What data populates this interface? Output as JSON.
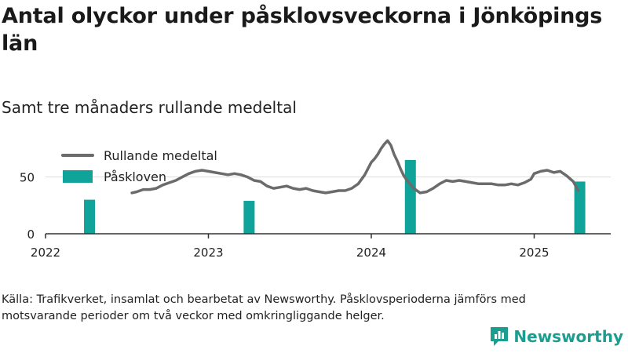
{
  "title": "Antal olyckor under påsklovsveckorna i Jönköpings län",
  "subtitle": "Samt tre månaders rullande medeltal",
  "source": "Källa: Trafikverket, insamlat och bearbetat av Newsworthy. Påsklovsperioderna jämförs med motsvarande perioder om två veckor med omkringliggande helger.",
  "brand": {
    "name": "Newsworthy",
    "color": "#1b9e8f",
    "icon": "newsworthy-logo-icon"
  },
  "colors": {
    "line": "#6b6b6b",
    "bar": "#0fa39a",
    "grid": "#dddddd",
    "axis": "#333333"
  },
  "chart_data": {
    "type": "bar+line",
    "title": "Antal olyckor under påsklovsveckorna i Jönköpings län",
    "subtitle": "Samt tre månaders rullande medeltal",
    "xlabel": "",
    "ylabel": "",
    "xlim": [
      2022.0,
      2025.47
    ],
    "ylim": [
      0,
      85
    ],
    "yticks": [
      0,
      50
    ],
    "xticks": [
      "2022",
      "2023",
      "2024",
      "2025"
    ],
    "grid": true,
    "legend": {
      "placement": "top-left",
      "entries": [
        "Rullande medeltal",
        "Påskloven"
      ]
    },
    "series": [
      {
        "name": "Rullande medeltal",
        "kind": "line",
        "x": [
          2022.53,
          2022.56,
          2022.6,
          2022.64,
          2022.68,
          2022.72,
          2022.76,
          2022.8,
          2022.84,
          2022.88,
          2022.92,
          2022.96,
          2023.0,
          2023.04,
          2023.08,
          2023.12,
          2023.16,
          2023.2,
          2023.24,
          2023.28,
          2023.32,
          2023.36,
          2023.4,
          2023.44,
          2023.48,
          2023.52,
          2023.56,
          2023.6,
          2023.64,
          2023.68,
          2023.72,
          2023.76,
          2023.8,
          2023.84,
          2023.88,
          2023.92,
          2023.96,
          2024.0,
          2024.02,
          2024.04,
          2024.06,
          2024.08,
          2024.1,
          2024.12,
          2024.14,
          2024.16,
          2024.18,
          2024.2,
          2024.22,
          2024.26,
          2024.3,
          2024.34,
          2024.38,
          2024.42,
          2024.46,
          2024.5,
          2024.54,
          2024.58,
          2024.62,
          2024.66,
          2024.7,
          2024.74,
          2024.78,
          2024.82,
          2024.86,
          2024.9,
          2024.94,
          2024.98,
          2025.0,
          2025.04,
          2025.08,
          2025.12,
          2025.16,
          2025.2,
          2025.24,
          2025.27
        ],
        "values": [
          36,
          37,
          39,
          39,
          40,
          43,
          45,
          47,
          50,
          53,
          55,
          56,
          55,
          54,
          53,
          52,
          53,
          52,
          50,
          47,
          46,
          42,
          40,
          41,
          42,
          40,
          39,
          40,
          38,
          37,
          36,
          37,
          38,
          38,
          40,
          44,
          52,
          63,
          66,
          70,
          75,
          79,
          82,
          78,
          70,
          64,
          57,
          51,
          47,
          40,
          36,
          37,
          40,
          44,
          47,
          46,
          47,
          46,
          45,
          44,
          44,
          44,
          43,
          43,
          44,
          43,
          45,
          48,
          53,
          55,
          56,
          54,
          55,
          51,
          46,
          38
        ]
      },
      {
        "name": "Påskloven",
        "kind": "bar",
        "x": [
          2022.27,
          2023.25,
          2024.24,
          2025.28
        ],
        "values": [
          30,
          29,
          65,
          46
        ]
      }
    ]
  }
}
